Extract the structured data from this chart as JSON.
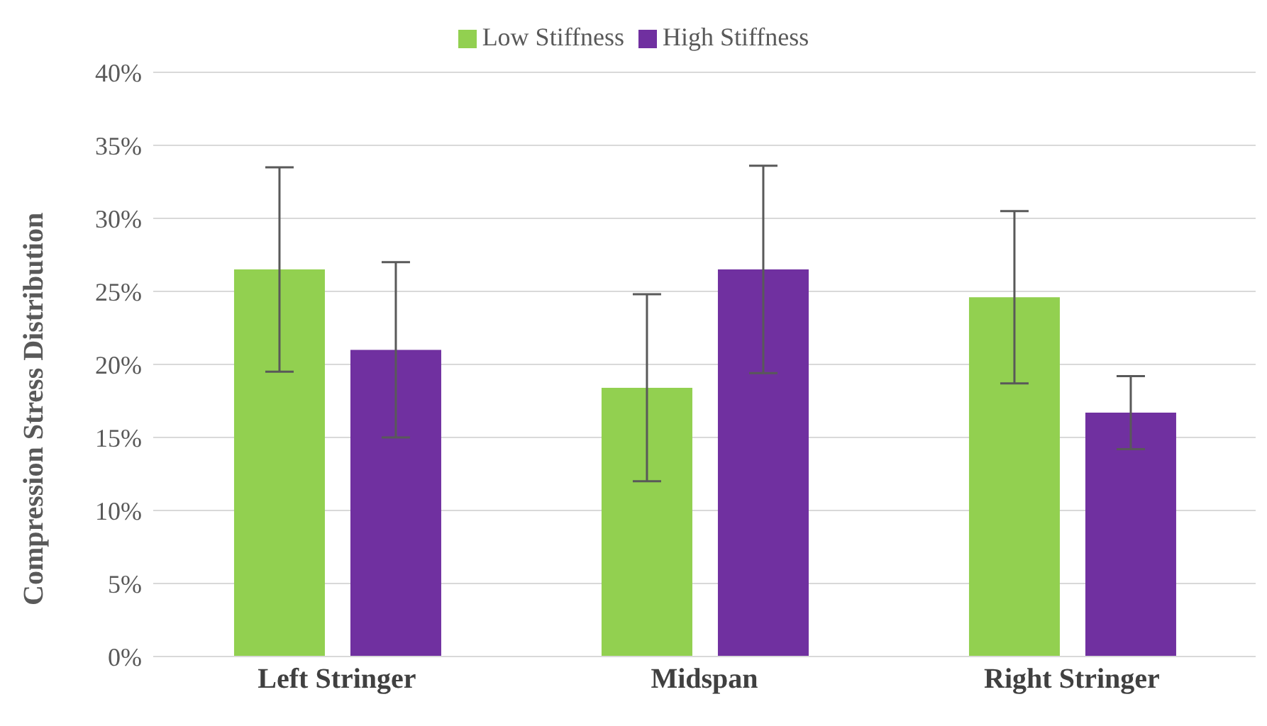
{
  "chart_data": {
    "type": "bar",
    "ylabel": "Compression Stress Distribution",
    "categories": [
      "Left Stringer",
      "Midspan",
      "Right Stringer"
    ],
    "series": [
      {
        "name": "Low Stiffness",
        "color": "#92d050",
        "values": [
          26.5,
          18.4,
          24.6
        ],
        "errors": [
          7,
          6.4,
          5.9
        ]
      },
      {
        "name": "High Stiffness",
        "color": "#7030a0",
        "values": [
          21,
          26.5,
          16.7
        ],
        "errors": [
          6,
          7.1,
          2.5
        ]
      }
    ],
    "ylim": [
      0,
      40
    ],
    "yticks": [
      {
        "value": 0,
        "label": "0%"
      },
      {
        "value": 5,
        "label": "5%"
      },
      {
        "value": 10,
        "label": "10%"
      },
      {
        "value": 15,
        "label": "15%"
      },
      {
        "value": 20,
        "label": "20%"
      },
      {
        "value": 25,
        "label": "25%"
      },
      {
        "value": 30,
        "label": "30%"
      },
      {
        "value": 35,
        "label": "35%"
      },
      {
        "value": 40,
        "label": "40%"
      }
    ],
    "grid": "y",
    "legend": "top"
  }
}
